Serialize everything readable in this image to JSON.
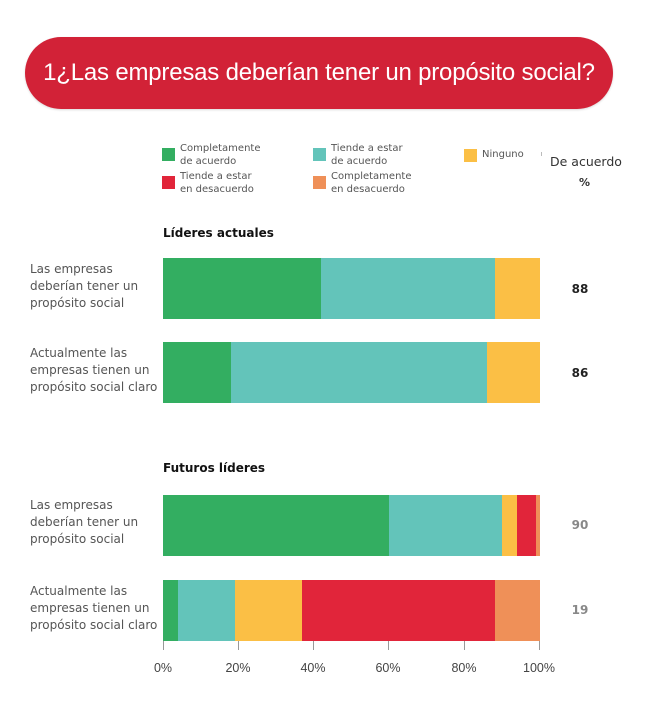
{
  "title": "1¿Las empresas deberían tener un propósito social?",
  "legend": [
    {
      "label": "Completamente\nde acuerdo",
      "color": "#33ae61"
    },
    {
      "label": "Tiende a estar\nde acuerdo",
      "color": "#63c4ba"
    },
    {
      "label": "Ninguno",
      "color": "#fbbf45"
    },
    {
      "label": "Tiende a estar\nen desacuerdo",
      "color": "#e1253a"
    },
    {
      "label": "Completamente\nen desacuerdo",
      "color": "#ef9058"
    }
  ],
  "column_header": {
    "label": "De acuerdo",
    "unit": "%"
  },
  "chart_data": {
    "type": "bar",
    "orientation": "horizontal",
    "stacked": true,
    "title": "1¿Las empresas deberían tener un propósito social?",
    "xlim": [
      0,
      100
    ],
    "x_ticks": [
      "0%",
      "20%",
      "40%",
      "60%",
      "80%",
      "100%"
    ],
    "series_names": [
      "Completamente de acuerdo",
      "Tiende a estar de acuerdo",
      "Ninguno",
      "Tiende a estar en desacuerdo",
      "Completamente en desacuerdo"
    ],
    "colors": [
      "#33ae61",
      "#63c4ba",
      "#fbbf45",
      "#e1253a",
      "#ef9058"
    ],
    "groups": [
      {
        "title": "Líderes actuales",
        "value_color": "#222222",
        "rows": [
          {
            "label": "Las empresas\ndeberían tener un\npropósito social",
            "values": [
              42,
              46,
              12,
              0,
              0
            ],
            "agree": "88"
          },
          {
            "label": "Actualmente las\nempresas tienen un\npropósito social claro",
            "values": [
              18,
              68,
              14,
              0,
              0
            ],
            "agree": "86"
          }
        ]
      },
      {
        "title": "Futuros líderes",
        "value_color": "#888888",
        "rows": [
          {
            "label": "Las empresas\ndeberían tener un\npropósito social",
            "values": [
              60,
              30,
              4,
              5,
              1
            ],
            "agree": "90"
          },
          {
            "label": "Actualmente las\nempresas tienen un\npropósito social claro",
            "values": [
              4,
              15,
              18,
              51,
              12
            ],
            "agree": "19"
          }
        ]
      }
    ]
  }
}
